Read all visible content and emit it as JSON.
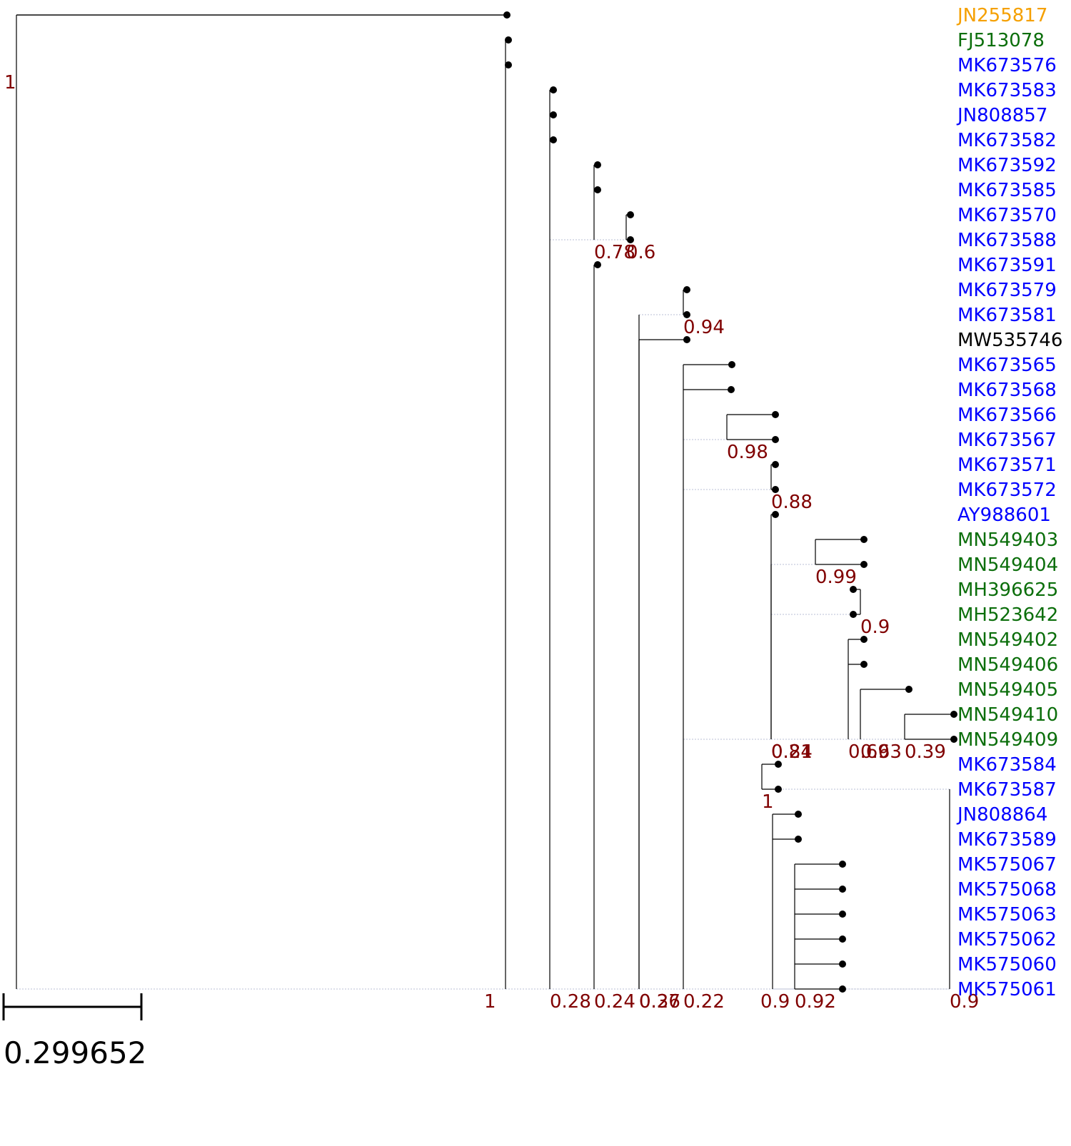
{
  "leaves": [
    {
      "id": "JN255817",
      "group": "orange"
    },
    {
      "id": "FJ513078",
      "group": "green"
    },
    {
      "id": "MK673576",
      "group": "blue"
    },
    {
      "id": "MK673583",
      "group": "blue"
    },
    {
      "id": "JN808857",
      "group": "blue"
    },
    {
      "id": "MK673582",
      "group": "blue"
    },
    {
      "id": "MK673592",
      "group": "blue"
    },
    {
      "id": "MK673585",
      "group": "blue"
    },
    {
      "id": "MK673570",
      "group": "blue"
    },
    {
      "id": "MK673588",
      "group": "blue"
    },
    {
      "id": "MK673591",
      "group": "blue"
    },
    {
      "id": "MK673579",
      "group": "blue"
    },
    {
      "id": "MK673581",
      "group": "blue"
    },
    {
      "id": "MW535746",
      "group": "black"
    },
    {
      "id": "MK673565",
      "group": "blue"
    },
    {
      "id": "MK673568",
      "group": "blue"
    },
    {
      "id": "MK673566",
      "group": "blue"
    },
    {
      "id": "MK673567",
      "group": "blue"
    },
    {
      "id": "MK673571",
      "group": "blue"
    },
    {
      "id": "MK673572",
      "group": "blue"
    },
    {
      "id": "AY988601",
      "group": "blue"
    },
    {
      "id": "MN549403",
      "group": "green"
    },
    {
      "id": "MN549404",
      "group": "green"
    },
    {
      "id": "MH396625",
      "group": "green"
    },
    {
      "id": "MH523642",
      "group": "green"
    },
    {
      "id": "MN549402",
      "group": "green"
    },
    {
      "id": "MN549406",
      "group": "green"
    },
    {
      "id": "MN549405",
      "group": "green"
    },
    {
      "id": "MN549410",
      "group": "green"
    },
    {
      "id": "MN549409",
      "group": "green"
    },
    {
      "id": "MK673584",
      "group": "blue"
    },
    {
      "id": "MK673587",
      "group": "blue"
    },
    {
      "id": "JN808864",
      "group": "blue"
    },
    {
      "id": "MK673589",
      "group": "blue"
    },
    {
      "id": "MK575067",
      "group": "blue"
    },
    {
      "id": "MK575068",
      "group": "blue"
    },
    {
      "id": "MK575063",
      "group": "blue"
    },
    {
      "id": "MK575062",
      "group": "blue"
    },
    {
      "id": "MK575060",
      "group": "blue"
    },
    {
      "id": "MK575061",
      "group": "blue"
    }
  ],
  "group_colors": {
    "orange": "#f5a000",
    "green": "#0b6e0b",
    "blue": "#0000ff",
    "black": "#000000"
  },
  "support_color": "#800000",
  "tree": {
    "support": "1",
    "children": [
      {
        "leaf": "JN255817"
      },
      {
        "support": "1",
        "children": [
          {
            "leaf": "FJ513078"
          },
          {
            "leaf": "MK673576"
          },
          {
            "support": "0.28",
            "children": [
              {
                "leaf": "MK673583"
              },
              {
                "leaf": "JN808857"
              },
              {
                "leaf": "MK673582"
              },
              {
                "support": "0.78",
                "children": [
                  {
                    "leaf": "MK673592"
                  },
                  {
                    "leaf": "MK673585"
                  },
                  {
                    "support": "0.6",
                    "children": [
                      {
                        "leaf": "MK673570"
                      },
                      {
                        "leaf": "MK673588"
                      }
                    ]
                  }
                ]
              },
              {
                "support": "0.24",
                "children": [
                  {
                    "leaf": "MK673591"
                  },
                  {
                    "support": "0.27",
                    "children": [
                      {
                        "support": "0.94",
                        "children": [
                          {
                            "leaf": "MK673579"
                          },
                          {
                            "leaf": "MK673581"
                          }
                        ]
                      },
                      {
                        "support": "0.36",
                        "children": [
                          {
                            "leaf": "MW535746"
                          },
                          {
                            "support": "0.22",
                            "children": [
                              {
                                "leaf": "MK673565"
                              },
                              {
                                "leaf": "MK673568"
                              },
                              {
                                "support": "0.98",
                                "children": [
                                  {
                                    "leaf": "MK673566"
                                  },
                                  {
                                    "leaf": "MK673567"
                                  }
                                ]
                              },
                              {
                                "support": "0.88",
                                "children": [
                                  {
                                    "leaf": "MK673571"
                                  },
                                  {
                                    "leaf": "MK673572"
                                  }
                                ]
                              },
                              {
                                "support": "0.24",
                                "children": [
                                  {
                                    "leaf": "AY988601"
                                  },
                                  {
                                    "support": "0.81",
                                    "children": [
                                      {
                                        "support": "0.99",
                                        "children": [
                                          {
                                            "leaf": "MN549403"
                                          },
                                          {
                                            "leaf": "MN549404"
                                          }
                                        ]
                                      },
                                      {
                                        "support": "0.9",
                                        "children": [
                                          {
                                            "leaf": "MH396625"
                                          },
                                          {
                                            "leaf": "MH523642"
                                          }
                                        ]
                                      },
                                      {
                                        "support": "0.69",
                                        "children": [
                                          {
                                            "leaf": "MN549402"
                                          },
                                          {
                                            "leaf": "MN549406"
                                          },
                                          {
                                            "support": "0.63",
                                            "children": [
                                              {
                                                "leaf": "MN549405"
                                              },
                                              {
                                                "support": "0.39",
                                                "children": [
                                                  {
                                                    "leaf": "MN549410"
                                                  },
                                                  {
                                                    "leaf": "MN549409"
                                                  }
                                                ]
                                              }
                                            ]
                                          }
                                        ]
                                      }
                                    ]
                                  }
                                ]
                              },
                              {
                                "support": "0.9",
                                "children": [
                                  {
                                    "support": "1",
                                    "children": [
                                      {
                                        "leaf": "MK673584"
                                      },
                                      {
                                        "leaf": "MK673587"
                                      }
                                    ]
                                  },
                                  {
                                    "support": "0.9",
                                    "children": [
                                      {
                                        "leaf": "JN808864"
                                      },
                                      {
                                        "leaf": "MK673589"
                                      },
                                      {
                                        "support": "0.92",
                                        "children": [
                                          {
                                            "leaf": "MK575067"
                                          },
                                          {
                                            "leaf": "MK575068"
                                          },
                                          {
                                            "leaf": "MK575063"
                                          },
                                          {
                                            "leaf": "MK575062"
                                          },
                                          {
                                            "leaf": "MK575060"
                                          },
                                          {
                                            "leaf": "MK575061"
                                          }
                                        ]
                                      }
                                    ]
                                  }
                                ]
                              }
                            ]
                          }
                        ]
                      }
                    ]
                  }
                ]
              }
            ]
          }
        ]
      }
    ]
  },
  "scale_bar": {
    "label": "0.299652"
  }
}
